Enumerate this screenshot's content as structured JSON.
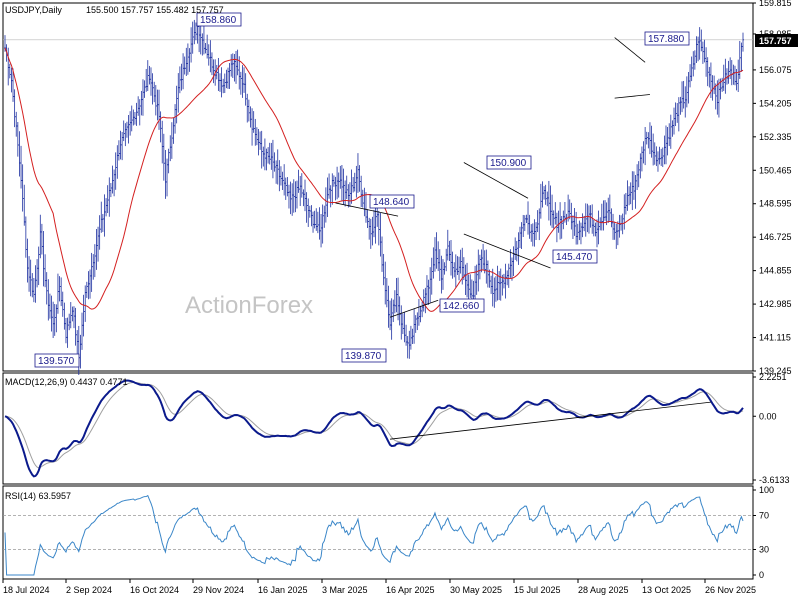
{
  "header": {
    "symbol_line": "USDJPY,Daily",
    "ohlc": "155.500 157.757 155.482 157.757"
  },
  "watermark": "ActionForex",
  "current_price_label": "157.757",
  "macd": {
    "label": "MACD(12,26,9) 0.4437 0.4771",
    "ticks": [
      "2.2251",
      "0.00",
      "-3.6133"
    ]
  },
  "rsi": {
    "label": "RSI(14) 63.5957",
    "ticks": [
      "100",
      "70",
      "30",
      "0"
    ]
  },
  "colors": {
    "price_bars": "#1c2fa0",
    "moving_average": "#d42020",
    "macd_line": "#0b1a8c",
    "signal_line": "#a0a0a0",
    "rsi_line": "#3a86c8",
    "level_text": "#1a1a8c"
  },
  "chart_data": {
    "type": "ohlc",
    "symbol": "USDJPY",
    "timeframe": "Daily",
    "price_axis_ticks": [
      159.815,
      158.085,
      156.075,
      154.205,
      152.335,
      150.465,
      148.595,
      146.725,
      144.855,
      142.985,
      141.115,
      139.245
    ],
    "price_range": [
      139.245,
      159.815
    ],
    "x_axis_labels": [
      "18 Jul 2024",
      "2 Sep 2024",
      "16 Oct 2024",
      "29 Nov 2024",
      "16 Jan 2025",
      "3 Mar 2025",
      "16 Apr 2025",
      "30 May 2025",
      "15 Jul 2025",
      "28 Aug 2025",
      "13 Oct 2025",
      "26 Nov 2025"
    ],
    "annotated_levels": [
      {
        "label": "158.860",
        "price": 158.86
      },
      {
        "label": "139.570",
        "price": 139.57
      },
      {
        "label": "148.640",
        "price": 148.64
      },
      {
        "label": "139.870",
        "price": 139.87
      },
      {
        "label": "142.660",
        "price": 142.66
      },
      {
        "label": "150.900",
        "price": 150.9
      },
      {
        "label": "145.470",
        "price": 145.47
      },
      {
        "label": "157.880",
        "price": 157.88
      }
    ],
    "last_price": 157.757,
    "price_waypoints": [
      [
        0,
        157.3
      ],
      [
        4,
        155.5
      ],
      [
        10,
        150.0
      ],
      [
        14,
        145.0
      ],
      [
        18,
        143.5
      ],
      [
        22,
        146.8
      ],
      [
        26,
        143.5
      ],
      [
        30,
        141.8
      ],
      [
        34,
        144.0
      ],
      [
        38,
        141.3
      ],
      [
        42,
        142.8
      ],
      [
        46,
        140.0
      ],
      [
        50,
        143.5
      ],
      [
        55,
        145.5
      ],
      [
        60,
        147.5
      ],
      [
        66,
        149.5
      ],
      [
        72,
        152.0
      ],
      [
        78,
        153.0
      ],
      [
        84,
        154.2
      ],
      [
        90,
        155.8
      ],
      [
        96,
        153.5
      ],
      [
        100,
        150.0
      ],
      [
        104,
        152.5
      ],
      [
        108,
        155.0
      ],
      [
        114,
        157.0
      ],
      [
        120,
        158.5
      ],
      [
        124,
        157.5
      ],
      [
        130,
        156.2
      ],
      [
        136,
        155.2
      ],
      [
        142,
        156.5
      ],
      [
        148,
        155.5
      ],
      [
        154,
        153.0
      ],
      [
        160,
        151.5
      ],
      [
        166,
        151.0
      ],
      [
        172,
        150.0
      ],
      [
        178,
        148.8
      ],
      [
        184,
        149.5
      ],
      [
        190,
        148.0
      ],
      [
        196,
        147.0
      ],
      [
        202,
        149.5
      ],
      [
        208,
        150.0
      ],
      [
        214,
        149.0
      ],
      [
        220,
        150.3
      ],
      [
        224,
        148.3
      ],
      [
        228,
        147.0
      ],
      [
        232,
        148.0
      ],
      [
        236,
        144.5
      ],
      [
        240,
        142.0
      ],
      [
        244,
        143.5
      ],
      [
        248,
        141.5
      ],
      [
        252,
        140.5
      ],
      [
        256,
        142.0
      ],
      [
        260,
        143.0
      ],
      [
        264,
        144.0
      ],
      [
        268,
        145.8
      ],
      [
        272,
        144.5
      ],
      [
        276,
        146.0
      ],
      [
        280,
        144.8
      ],
      [
        284,
        145.2
      ],
      [
        288,
        144.0
      ],
      [
        292,
        143.5
      ],
      [
        296,
        145.5
      ],
      [
        300,
        145.0
      ],
      [
        304,
        143.8
      ],
      [
        308,
        144.0
      ],
      [
        312,
        144.5
      ],
      [
        316,
        145.5
      ],
      [
        320,
        146.5
      ],
      [
        324,
        148.0
      ],
      [
        328,
        147.0
      ],
      [
        332,
        147.5
      ],
      [
        336,
        149.5
      ],
      [
        340,
        148.0
      ],
      [
        344,
        147.5
      ],
      [
        348,
        147.8
      ],
      [
        352,
        148.0
      ],
      [
        356,
        147.0
      ],
      [
        360,
        147.5
      ],
      [
        364,
        148.0
      ],
      [
        368,
        147.2
      ],
      [
        372,
        147.8
      ],
      [
        376,
        148.3
      ],
      [
        380,
        146.8
      ],
      [
        384,
        147.5
      ],
      [
        388,
        149.0
      ],
      [
        392,
        149.5
      ],
      [
        396,
        151.0
      ],
      [
        400,
        152.5
      ],
      [
        404,
        151.5
      ],
      [
        408,
        151.0
      ],
      [
        412,
        152.0
      ],
      [
        416,
        153.0
      ],
      [
        420,
        154.0
      ],
      [
        424,
        154.5
      ],
      [
        428,
        156.0
      ],
      [
        432,
        157.8
      ],
      [
        436,
        156.8
      ],
      [
        440,
        155.5
      ],
      [
        444,
        154.5
      ],
      [
        448,
        155.5
      ],
      [
        452,
        156.0
      ],
      [
        456,
        155.5
      ],
      [
        460,
        157.757
      ]
    ],
    "series": [
      {
        "name": "USDJPY,Daily"
      },
      {
        "name": "MACD(12,26,9)",
        "values": [
          0.4437,
          0.4771
        ]
      },
      {
        "name": "RSI(14)",
        "values": [
          63.5957
        ]
      }
    ]
  }
}
